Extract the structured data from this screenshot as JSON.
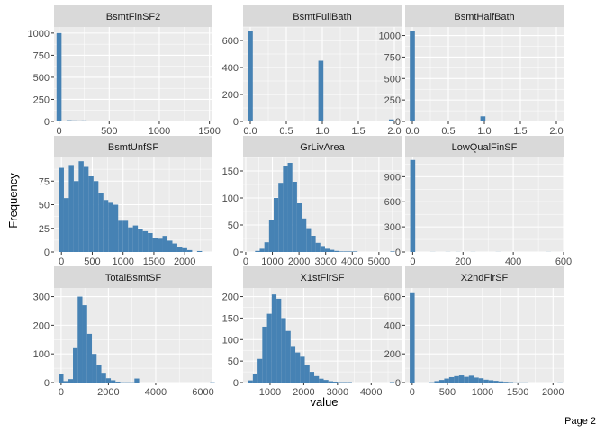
{
  "page_label": "Page 2",
  "chart_data": {
    "type": "histogram-facets",
    "xlabel": "value",
    "ylabel": "Frequency",
    "bar_color": "#4682B4",
    "panel_background": "#EBEBEB",
    "strip_background": "#D9D9D9",
    "grid": true,
    "panels": [
      {
        "title": "BsmtFinSF2",
        "xlim": [
          -50,
          1530
        ],
        "ylim": [
          0,
          1070
        ],
        "xticks": [
          0,
          500,
          1000,
          1500
        ],
        "yticks": [
          0,
          250,
          500,
          750,
          1000
        ],
        "bin_start": -25,
        "bin_width": 50,
        "counts": [
          1000,
          10,
          14,
          12,
          11,
          12,
          10,
          9,
          6,
          6,
          7,
          5,
          8,
          6,
          4,
          6,
          6,
          4,
          3,
          3,
          3,
          3,
          3,
          2,
          2,
          2,
          1,
          1,
          1,
          1,
          5
        ]
      },
      {
        "title": "BsmtFullBath",
        "xlim": [
          -0.1,
          2.1
        ],
        "ylim": [
          0,
          700
        ],
        "xticks": [
          0.0,
          0.5,
          1.0,
          1.5,
          2.0
        ],
        "xtick_labels": [
          "0.0",
          "0.5",
          "1.0",
          "1.5",
          "2.0"
        ],
        "yticks": [
          0,
          200,
          400,
          600
        ],
        "bin_start": -0.035,
        "bin_width": 0.07,
        "counts": [
          670,
          0,
          0,
          0,
          0,
          0,
          0,
          0,
          0,
          0,
          0,
          0,
          0,
          0,
          450,
          0,
          0,
          0,
          0,
          0,
          0,
          0,
          0,
          0,
          0,
          0,
          0,
          0,
          15
        ]
      },
      {
        "title": "BsmtHalfBath",
        "xlim": [
          -0.1,
          2.1
        ],
        "ylim": [
          0,
          1100
        ],
        "xticks": [
          0.0,
          0.5,
          1.0,
          1.5,
          2.0
        ],
        "xtick_labels": [
          "0.0",
          "0.5",
          "1.0",
          "1.5",
          "2.0"
        ],
        "yticks": [
          0,
          250,
          500,
          750,
          1000
        ],
        "bin_start": -0.035,
        "bin_width": 0.07,
        "counts": [
          1050,
          0,
          0,
          0,
          0,
          0,
          0,
          0,
          0,
          0,
          0,
          0,
          0,
          0,
          60,
          0,
          0,
          0,
          0,
          0,
          0,
          0,
          0,
          0,
          0,
          0,
          0,
          0,
          3
        ]
      },
      {
        "title": "BsmtUnfSF",
        "xlim": [
          -120,
          2450
        ],
        "ylim": [
          0,
          100
        ],
        "xticks": [
          0,
          500,
          1000,
          1500,
          2000
        ],
        "yticks": [
          0,
          25,
          50,
          75
        ],
        "bin_start": -40,
        "bin_width": 80,
        "counts": [
          89,
          57,
          92,
          75,
          96,
          90,
          80,
          75,
          62,
          55,
          52,
          50,
          33,
          33,
          26,
          28,
          24,
          22,
          20,
          15,
          14,
          17,
          12,
          9,
          5,
          4,
          2,
          0,
          1
        ]
      },
      {
        "title": "GrLivArea",
        "xlim": [
          -100,
          5850
        ],
        "ylim": [
          0,
          175
        ],
        "xticks": [
          0,
          1000,
          2000,
          3000,
          4000,
          5000
        ],
        "yticks": [
          0,
          50,
          100,
          150
        ],
        "bin_start": 350,
        "bin_width": 175,
        "counts": [
          2,
          6,
          18,
          60,
          100,
          128,
          160,
          165,
          130,
          90,
          62,
          44,
          30,
          17,
          11,
          6,
          4,
          2,
          1,
          1,
          1,
          1,
          0,
          0,
          0,
          0,
          0,
          0,
          0,
          1
        ]
      },
      {
        "title": "LowQualFinSF",
        "xlim": [
          -30,
          600
        ],
        "ylim": [
          0,
          1130
        ],
        "xticks": [
          0,
          200,
          400,
          600
        ],
        "yticks": [
          0,
          300,
          600,
          900
        ],
        "bin_start": -10,
        "bin_width": 20,
        "counts": [
          1100,
          0,
          0,
          0,
          1,
          0,
          0,
          1,
          0,
          1,
          0,
          0,
          1,
          0,
          0,
          0,
          0,
          1,
          0,
          0,
          0,
          0,
          0,
          0,
          0,
          0,
          0,
          1
        ]
      },
      {
        "title": "TotalBsmtSF",
        "xlim": [
          -300,
          6400
        ],
        "ylim": [
          0,
          330
        ],
        "xticks": [
          0,
          2000,
          4000,
          6000
        ],
        "yticks": [
          0,
          100,
          200,
          300
        ],
        "bin_start": -100,
        "bin_width": 200,
        "counts": [
          30,
          5,
          12,
          120,
          300,
          270,
          170,
          100,
          60,
          34,
          15,
          8,
          3,
          1,
          1,
          1,
          14,
          0,
          0,
          0,
          0,
          0,
          0,
          0,
          0,
          0,
          0,
          0,
          0,
          0,
          0,
          0,
          1
        ]
      },
      {
        "title": "X1stFlrSF",
        "xlim": [
          200,
          4900
        ],
        "ylim": [
          0,
          220
        ],
        "xticks": [
          1000,
          2000,
          3000,
          4000
        ],
        "yticks": [
          0,
          50,
          100,
          150,
          200
        ],
        "bin_start": 350,
        "bin_width": 140,
        "counts": [
          5,
          20,
          55,
          130,
          160,
          205,
          195,
          150,
          120,
          85,
          70,
          60,
          40,
          25,
          15,
          9,
          6,
          3,
          2,
          1,
          1,
          1,
          0,
          0,
          0,
          0,
          0,
          0,
          0,
          0,
          1
        ]
      },
      {
        "title": "X2ndFlrSF",
        "xlim": [
          -100,
          2150
        ],
        "ylim": [
          0,
          660
        ],
        "xticks": [
          0,
          500,
          1000,
          1500,
          2000
        ],
        "yticks": [
          0,
          200,
          400,
          600
        ],
        "bin_start": -35,
        "bin_width": 70,
        "counts": [
          630,
          0,
          0,
          0,
          2,
          10,
          18,
          28,
          38,
          45,
          50,
          40,
          48,
          35,
          30,
          20,
          16,
          12,
          8,
          5,
          3,
          1,
          1,
          1,
          0,
          0,
          0,
          0,
          0,
          0,
          1
        ]
      }
    ]
  }
}
